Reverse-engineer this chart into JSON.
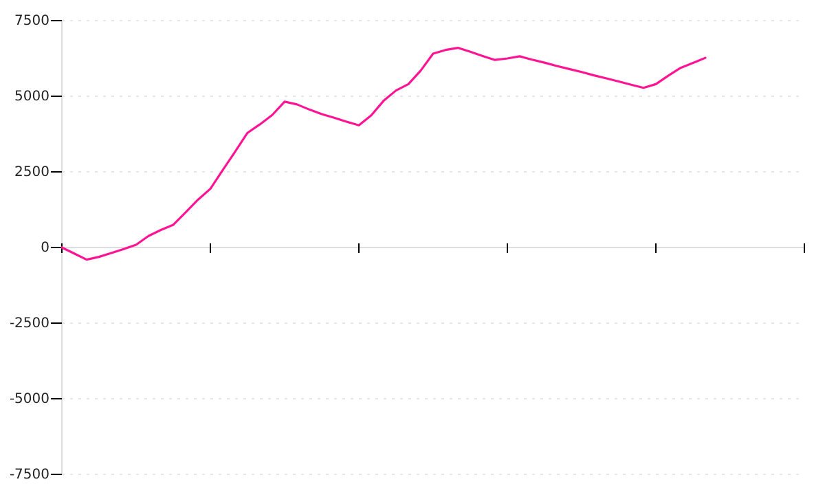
{
  "chart_data": {
    "type": "line",
    "categories": [
      null,
      null,
      null,
      null,
      null,
      null,
      null,
      null,
      null,
      null,
      null,
      null,
      null,
      null,
      null,
      null,
      null,
      null,
      null,
      null,
      null,
      null,
      null,
      null,
      null,
      null,
      null,
      null,
      null,
      null,
      null,
      null,
      null,
      null,
      null,
      null,
      null,
      null,
      null,
      null,
      null,
      null,
      null,
      null,
      null,
      null,
      null,
      null,
      null,
      null,
      null,
      null,
      null,
      null,
      null,
      null,
      null,
      null,
      null,
      null,
      null
    ],
    "series": [
      {
        "color": "#ff1493",
        "values": [
          0,
          -200,
          -400,
          -310,
          -180,
          -50,
          90,
          380,
          580,
          750,
          1160,
          1580,
          1940,
          2560,
          3170,
          3790,
          4070,
          4380,
          4820,
          4730,
          4560,
          4410,
          4290,
          4160,
          4040,
          4370,
          4850,
          5190,
          5400,
          5850,
          6410,
          6530,
          6600,
          6470,
          6330,
          6200,
          6250,
          6320,
          6210,
          6110,
          6000,
          5900,
          5800,
          5690,
          5590,
          5490,
          5380,
          5280,
          5400,
          5680,
          5940,
          6100,
          6270,
          null,
          null,
          null,
          null,
          null,
          null,
          null,
          null
        ]
      }
    ],
    "ylim": [
      -7500,
      7500
    ],
    "yticks": [
      -7500,
      -5000,
      -2500,
      0,
      2500,
      5000,
      7500
    ],
    "grid": "y",
    "marker": "none",
    "line_style": "solid"
  }
}
